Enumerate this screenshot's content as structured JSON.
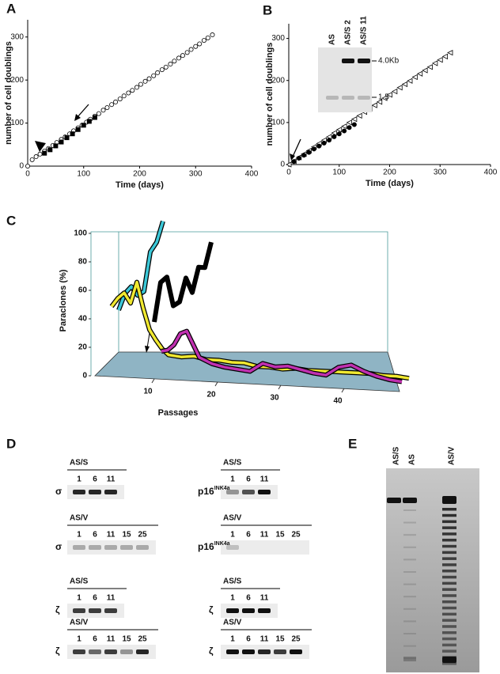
{
  "panel_labels": [
    "A",
    "B",
    "C",
    "D",
    "E"
  ],
  "chart_data": [
    {
      "type": "scatter",
      "x_label": "Time (days)",
      "y_label": "number of cell doublings",
      "xlim": [
        0,
        400
      ],
      "xticks": [
        0,
        100,
        200,
        300,
        400
      ],
      "ylim": [
        0,
        340
      ],
      "yticks": [
        0,
        100,
        200,
        300
      ],
      "series": [
        {
          "marker": "circle",
          "filled": false,
          "color": "#000000",
          "x": [
            0,
            8,
            15,
            22,
            30,
            37,
            45,
            52,
            60,
            67,
            75,
            82,
            90,
            97,
            105,
            112,
            120,
            127,
            135,
            142,
            150,
            157,
            165,
            172,
            180,
            187,
            195,
            202,
            210,
            217,
            225,
            232,
            240,
            247,
            255,
            262,
            270,
            277,
            285,
            292,
            300,
            307,
            315,
            322,
            330
          ],
          "values": [
            0,
            15,
            22,
            28,
            35,
            41,
            48,
            55,
            62,
            68,
            75,
            82,
            89,
            95,
            102,
            109,
            116,
            122,
            130,
            136,
            143,
            149,
            156,
            163,
            170,
            176,
            183,
            190,
            197,
            203,
            210,
            217,
            224,
            230,
            237,
            244,
            251,
            257,
            264,
            271,
            278,
            284,
            292,
            298,
            305
          ]
        },
        {
          "marker": "square",
          "filled": true,
          "color": "#000000",
          "x": [
            30,
            40,
            50,
            60,
            70,
            80,
            90,
            100,
            110,
            120
          ],
          "values": [
            30,
            38,
            47,
            56,
            66,
            75,
            85,
            95,
            104,
            113
          ]
        }
      ]
    },
    {
      "type": "scatter",
      "x_label": "Time (days)",
      "y_label": "number of cell doublings",
      "xlim": [
        0,
        400
      ],
      "xticks": [
        0,
        100,
        200,
        300,
        400
      ],
      "ylim": [
        0,
        335
      ],
      "yticks": [
        0,
        100,
        200,
        300
      ],
      "inset": {
        "lanes": [
          "AS",
          "AS/S 2",
          "AS/S 11"
        ],
        "markers": [
          "4.0Kb",
          "1.5"
        ]
      },
      "series": [
        {
          "marker": "triangle",
          "filled": false,
          "color": "#000000",
          "x": [
            0,
            10,
            20,
            30,
            40,
            50,
            60,
            70,
            80,
            90,
            100,
            110,
            120,
            130,
            140,
            150,
            160,
            170,
            180,
            190,
            200,
            210,
            220,
            230,
            240,
            250,
            260,
            270,
            280,
            290,
            300,
            310,
            320
          ],
          "values": [
            0,
            8,
            17,
            25,
            33,
            42,
            50,
            58,
            66,
            75,
            83,
            91,
            100,
            108,
            116,
            125,
            133,
            141,
            149,
            158,
            166,
            174,
            183,
            191,
            199,
            208,
            216,
            224,
            232,
            241,
            249,
            257,
            266
          ]
        },
        {
          "marker": "circle",
          "filled": true,
          "color": "#000000",
          "x": [
            10,
            20,
            30,
            40,
            50,
            60,
            70,
            80,
            90,
            100,
            110,
            120,
            130
          ],
          "values": [
            7,
            15,
            22,
            29,
            37,
            44,
            51,
            58,
            66,
            73,
            80,
            88,
            95
          ]
        }
      ]
    },
    {
      "type": "line3d",
      "x_label": "Passages",
      "y_label": "Paraclones (%)",
      "xlim": [
        0,
        48
      ],
      "xticks": [
        10,
        20,
        30,
        40
      ],
      "ylim": [
        0,
        100
      ],
      "yticks": [
        0,
        20,
        40,
        60,
        80,
        100
      ],
      "series": [
        {
          "color": "#3cc8d8",
          "x": [
            1,
            2,
            3,
            4,
            5,
            6,
            7,
            8
          ],
          "values": [
            33,
            45,
            50,
            44,
            47,
            75,
            82,
            97
          ]
        },
        {
          "color": "#f0e830",
          "x": [
            1,
            2,
            3,
            4,
            5,
            6,
            7,
            8,
            9,
            10,
            12,
            14,
            16,
            18,
            20,
            22,
            24,
            26,
            28,
            30,
            32,
            34,
            36,
            38,
            40,
            42,
            44,
            46,
            48
          ],
          "values": [
            40,
            46,
            50,
            43,
            58,
            40,
            25,
            18,
            12,
            8,
            7,
            8,
            6,
            6,
            5,
            5,
            3,
            3,
            2,
            3,
            2,
            2,
            2,
            2,
            2,
            2,
            1,
            1,
            0
          ]
        },
        {
          "color": "#c030b0",
          "x": [
            10,
            11,
            12,
            13,
            14,
            16,
            18,
            20,
            22,
            24,
            26,
            28,
            30,
            32,
            34,
            36,
            38,
            40,
            42,
            44,
            46,
            48
          ],
          "values": [
            15,
            16,
            20,
            28,
            30,
            12,
            8,
            6,
            5,
            4,
            10,
            8,
            9,
            7,
            5,
            4,
            10,
            12,
            8,
            5,
            3,
            2
          ]
        },
        {
          "color": "#000000",
          "x": [
            10,
            11,
            12,
            13,
            14,
            15,
            16,
            17,
            18,
            19
          ],
          "values": [
            40,
            68,
            72,
            52,
            55,
            72,
            62,
            80,
            80,
            98
          ]
        }
      ]
    }
  ],
  "blot_d": {
    "columns": [
      [
        {
          "group": "AS/S",
          "lanes": [
            "1",
            "6",
            "11"
          ],
          "protein": "σ"
        },
        {
          "group": "AS/V",
          "lanes": [
            "1",
            "6",
            "11",
            "15",
            "25"
          ],
          "protein": "σ"
        },
        {
          "group": "AS/S",
          "lanes": [
            "1",
            "6",
            "11"
          ],
          "protein": "ζ"
        },
        {
          "group": "AS/V",
          "lanes": [
            "1",
            "6",
            "11",
            "15",
            "25"
          ],
          "protein": "ζ"
        }
      ],
      [
        {
          "group": "AS/S",
          "lanes": [
            "1",
            "6",
            "11"
          ],
          "protein": "p16",
          "protein_sup": "INK4a"
        },
        {
          "group": "AS/V",
          "lanes": [
            "1",
            "6",
            "11",
            "15",
            "25"
          ],
          "protein": "p16",
          "protein_sup": "INK4a"
        },
        {
          "group": "AS/S",
          "lanes": [
            "1",
            "6",
            "11"
          ],
          "protein": "ζ"
        },
        {
          "group": "AS/V",
          "lanes": [
            "1",
            "6",
            "11",
            "15",
            "25"
          ],
          "protein": "ζ"
        }
      ]
    ]
  },
  "gel_e": {
    "lanes": [
      "AS/S",
      "AS",
      "AS/V"
    ]
  }
}
